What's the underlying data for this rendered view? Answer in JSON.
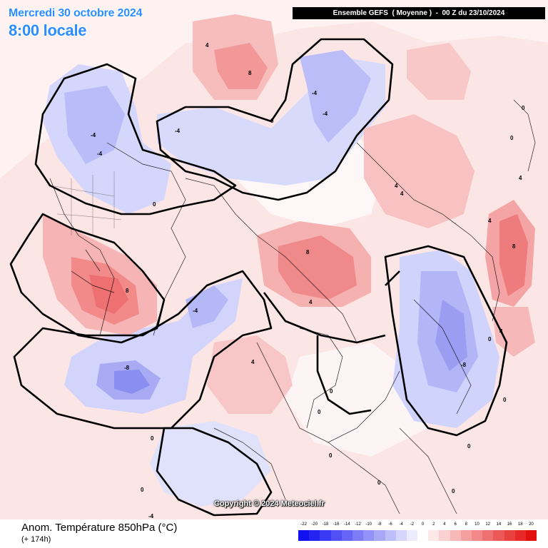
{
  "header": {
    "date_line": "Mercredi 30 octobre 2024",
    "time_line": "8:00 locale",
    "run_banner": "Ensemble GEFS  ( Moyenne )  -  00 Z du 23/10/2024"
  },
  "map": {
    "copyright": "Copyright © 2024 Meteociel.fr",
    "contour_labels": [
      "0",
      "4",
      "-4",
      "8",
      "-8"
    ]
  },
  "footer": {
    "variable_label": "Anom. Température 850hPa (°C)",
    "lead_time": "(+ 174h)"
  },
  "colorbar": {
    "ticks": [
      "-22",
      "-20",
      "-18",
      "-16",
      "-14",
      "-12",
      "-10",
      "-8",
      "-6",
      "-4",
      "-2",
      "0",
      "2",
      "4",
      "6",
      "8",
      "10",
      "12",
      "14",
      "16",
      "18",
      "20"
    ],
    "colors": [
      "#1010f0",
      "#2424f2",
      "#3a3af4",
      "#5050f5",
      "#6666f6",
      "#7c7cf7",
      "#9292f8",
      "#a8a8f9",
      "#bebefa",
      "#d6d6fc",
      "#ececfe",
      "#ffffff",
      "#fde8e8",
      "#fbd0d0",
      "#f8b8b8",
      "#f5a0a0",
      "#f28888",
      "#ef7070",
      "#ec5858",
      "#e94040",
      "#e62828",
      "#e31010"
    ]
  }
}
